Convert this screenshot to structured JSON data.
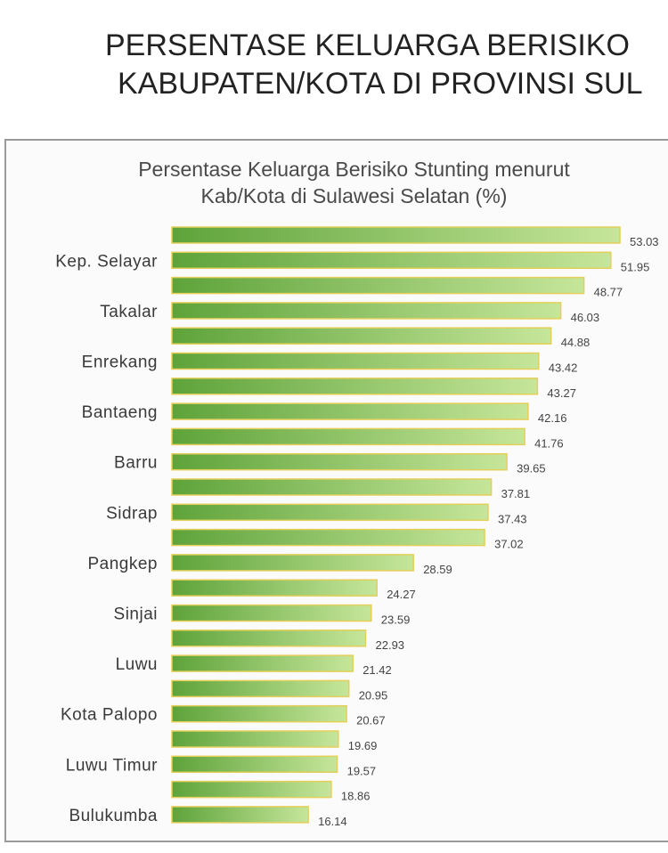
{
  "page": {
    "title_line1": "PERSENTASE KELUARGA BERISIKO",
    "title_line2": "KABUPATEN/KOTA DI PROVINSI SUL"
  },
  "colors": {
    "bar_dark": "#5ea33a",
    "bar_light": "#c6e69a",
    "bar_border": "#e4cf5a"
  },
  "chart_data": {
    "type": "bar",
    "orientation": "horizontal",
    "title": "Persentase Keluarga Berisiko Stunting menurut Kab/Kota di Sulawesi Selatan (%)",
    "title_line1": "Persentase Keluarga Berisiko Stunting menurut",
    "title_line2": "Kab/Kota di Sulawesi Selatan (%)",
    "categories": [
      "",
      "Kep. Selayar",
      "",
      "Takalar",
      "",
      "Enrekang",
      "",
      "Bantaeng",
      "",
      "Barru",
      "",
      "Sidrap",
      "",
      "Pangkep",
      "",
      "Sinjai",
      "",
      "Luwu",
      "",
      "Kota Palopo",
      "",
      "Luwu Timur",
      "",
      "Bulukumba"
    ],
    "values": [
      53.03,
      51.95,
      48.77,
      46.03,
      44.88,
      43.42,
      43.27,
      42.16,
      41.76,
      39.65,
      37.81,
      37.43,
      37.02,
      28.59,
      24.27,
      23.59,
      22.93,
      21.42,
      20.95,
      20.67,
      19.69,
      19.57,
      18.86,
      16.14
    ],
    "value_labels": [
      "53.03",
      "51.95",
      "48.77",
      "46.03",
      "44.88",
      "43.42",
      "43.27",
      "42.16",
      "41.76",
      "39.65",
      "37.81",
      "37.43",
      "37.02",
      "28.59",
      "24.27",
      "23.59",
      "22.93",
      "21.42",
      "20.95",
      "20.67",
      "19.69",
      "19.57",
      "18.86",
      "16.14"
    ],
    "xlim": [
      0,
      53.03
    ],
    "grid": false,
    "legend": "none",
    "xlabel": "",
    "ylabel": ""
  }
}
